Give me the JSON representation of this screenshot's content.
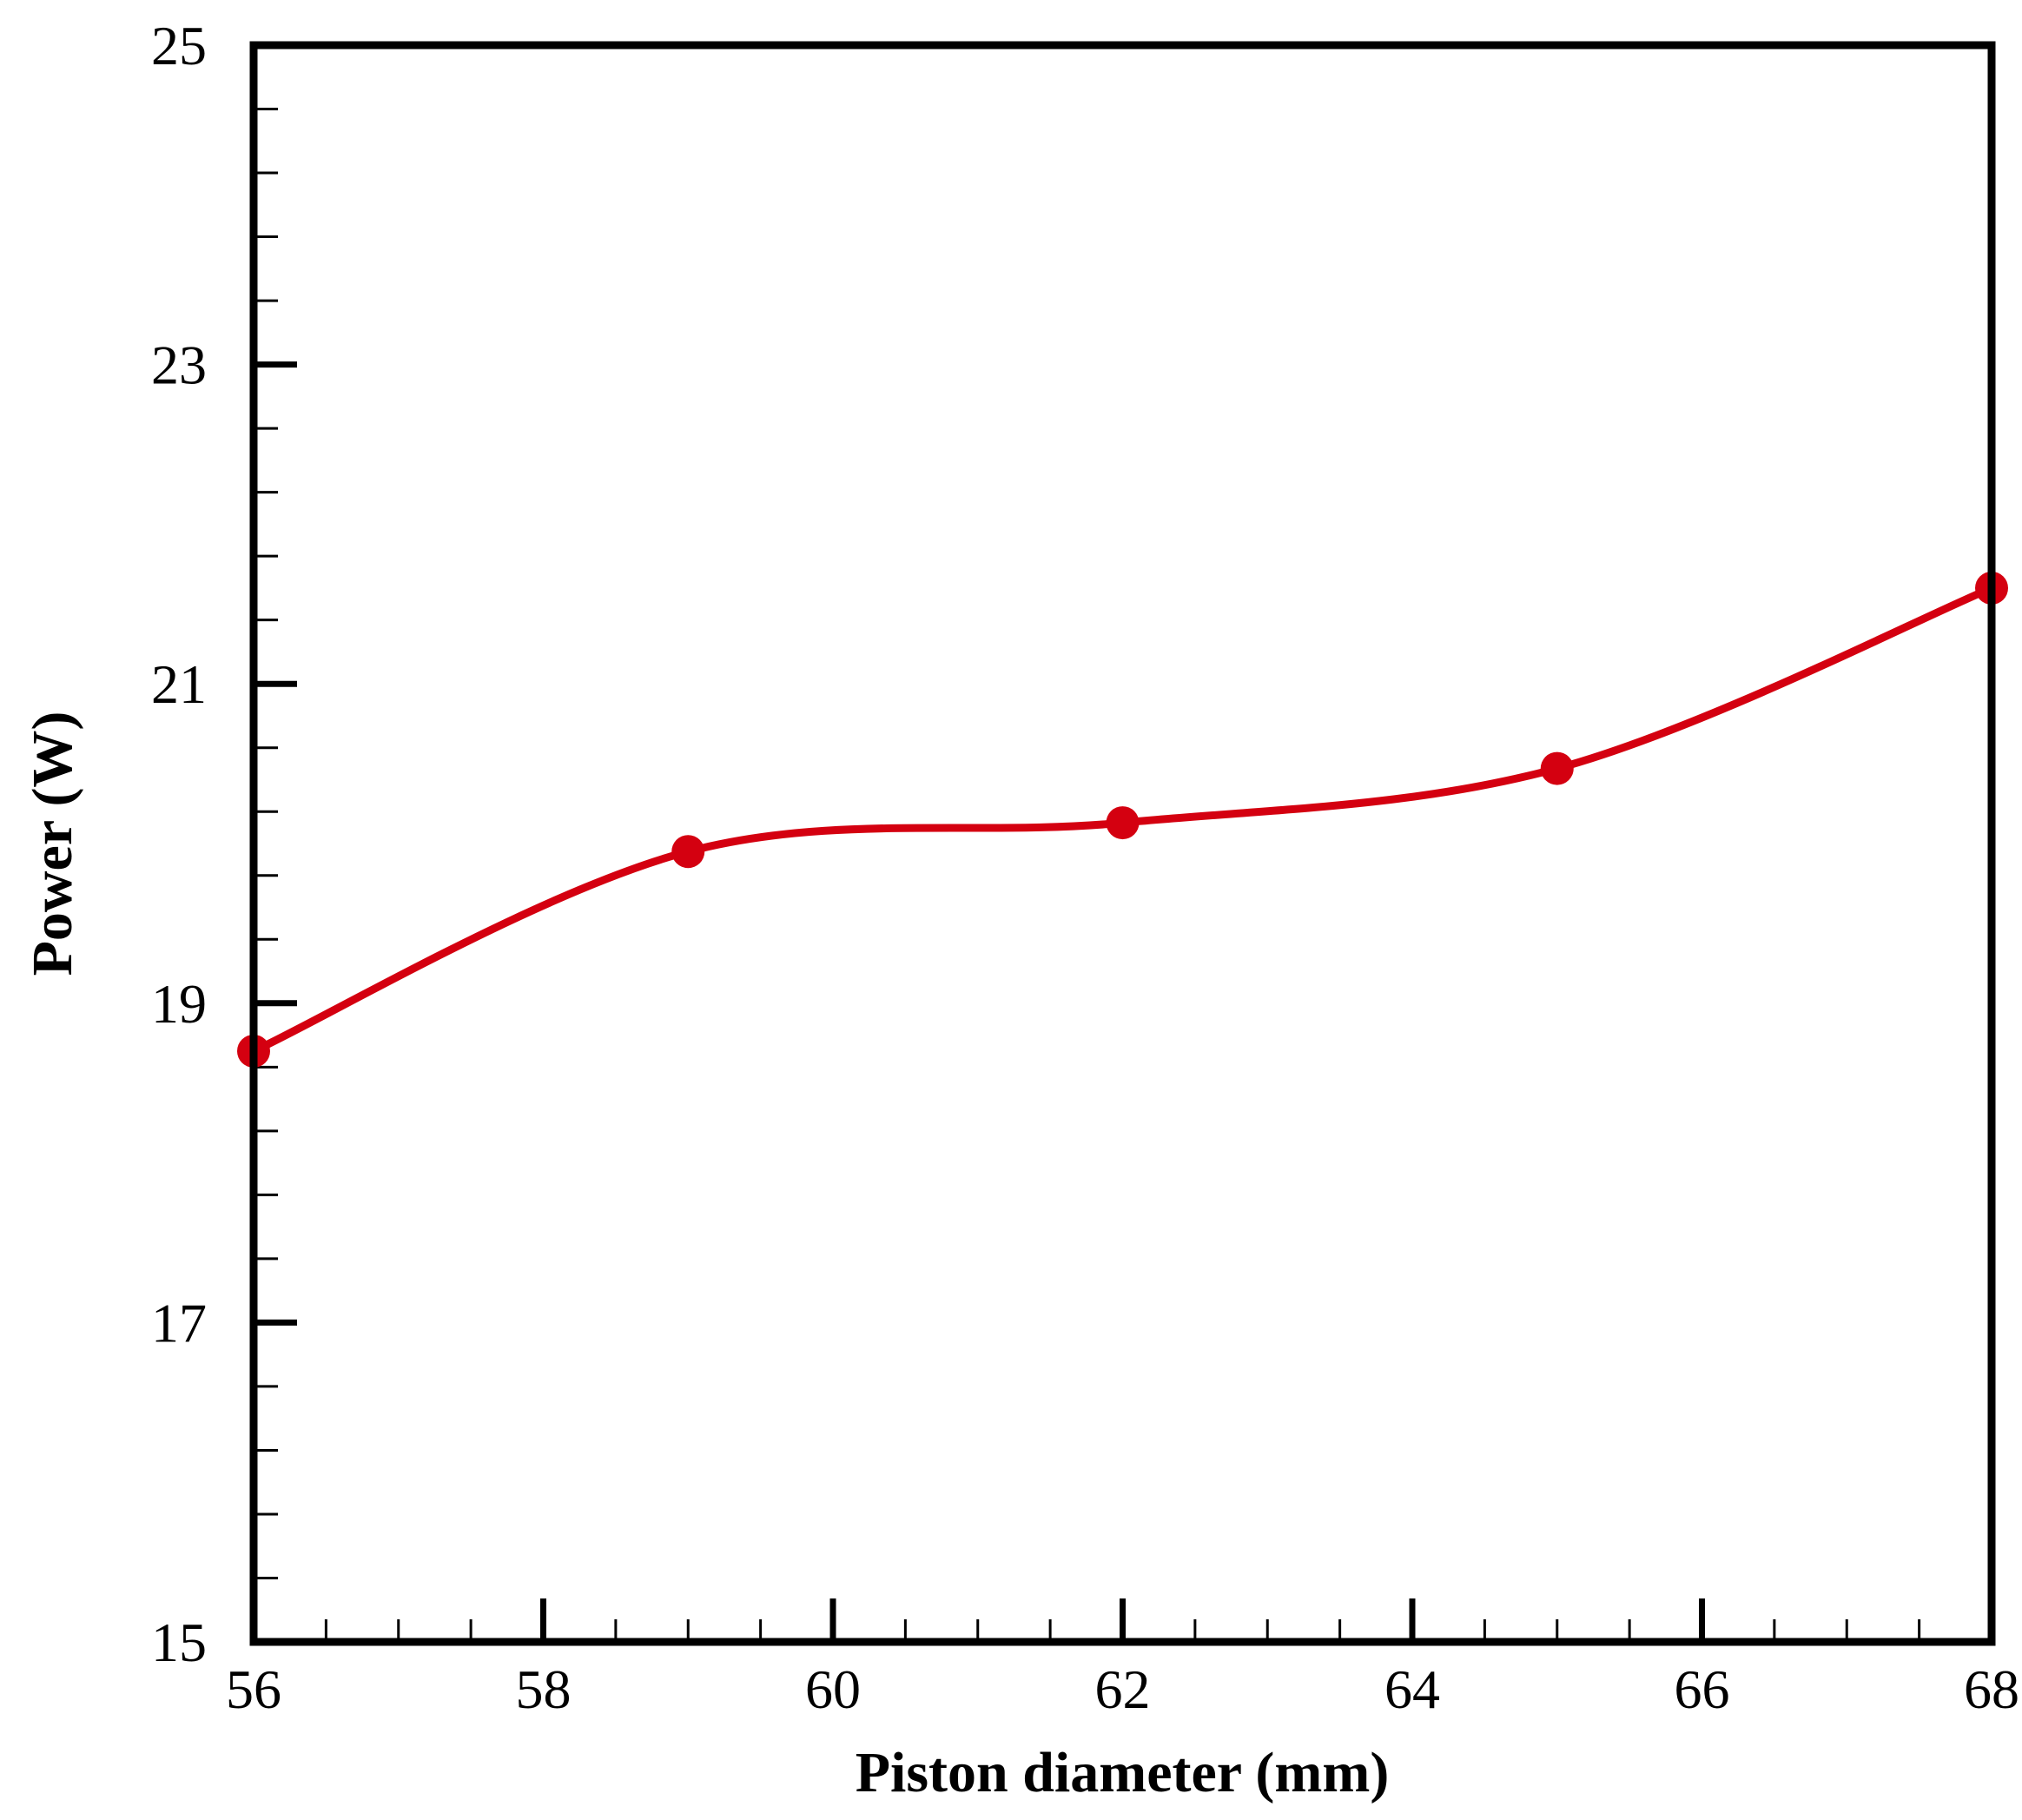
{
  "chart_data": {
    "type": "line",
    "title": "",
    "xlabel": "Piston diameter (mm)",
    "ylabel": "Power (W)",
    "xlim": [
      56,
      68
    ],
    "ylim": [
      15,
      25
    ],
    "x_major_ticks": [
      56,
      58,
      60,
      62,
      64,
      66,
      68
    ],
    "x_tick_labels": [
      "56",
      "58",
      "60",
      "62",
      "64",
      "66",
      "68"
    ],
    "x_minor_step": 0.5,
    "y_major_ticks": [
      15,
      17,
      19,
      21,
      23,
      25
    ],
    "y_tick_labels": [
      "15",
      "17",
      "19",
      "21",
      "23",
      "25"
    ],
    "y_minor_step": 0.4,
    "grid": false,
    "legend": "none",
    "series": [
      {
        "x": [
          56,
          59,
          62,
          65,
          68
        ],
        "y": [
          18.7,
          19.95,
          20.13,
          20.47,
          21.6
        ],
        "color": "#d40010",
        "marker": "circle",
        "smooth": true
      }
    ]
  }
}
